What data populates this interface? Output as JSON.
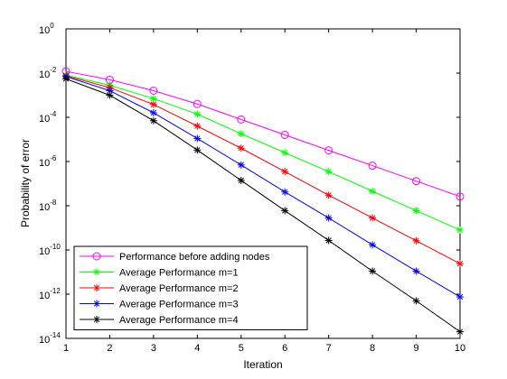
{
  "chart_data": {
    "type": "line",
    "xlabel": "Iteration",
    "ylabel": "Probability of error",
    "xlim": [
      1,
      10
    ],
    "ylim": [
      1e-14,
      1
    ],
    "yscale": "log",
    "x_ticks": [
      "1",
      "2",
      "3",
      "4",
      "5",
      "6",
      "7",
      "8",
      "9",
      "10"
    ],
    "y_ticks": [
      {
        "base": "10",
        "exp": "0"
      },
      {
        "base": "10",
        "exp": "-2"
      },
      {
        "base": "10",
        "exp": "-4"
      },
      {
        "base": "10",
        "exp": "-6"
      },
      {
        "base": "10",
        "exp": "-8"
      },
      {
        "base": "10",
        "exp": "-10"
      },
      {
        "base": "10",
        "exp": "-12"
      },
      {
        "base": "10",
        "exp": "-14"
      }
    ],
    "grid": false,
    "legend_position": "bottom-left",
    "x": [
      1,
      2,
      3,
      4,
      5,
      6,
      7,
      8,
      9,
      10
    ],
    "series": [
      {
        "name": "Performance before adding nodes",
        "color": "#ff00ff",
        "marker": "circle",
        "values": [
          0.012,
          0.005,
          0.0016,
          0.0004,
          8e-05,
          1.6e-05,
          3.2e-06,
          6.5e-07,
          1.3e-07,
          2.6e-08
        ]
      },
      {
        "name": "Average Performance m=1",
        "color": "#00ff00",
        "marker": "star",
        "values": [
          0.008,
          0.0028,
          0.0007,
          0.00014,
          1.8e-05,
          2.5e-06,
          3.5e-07,
          4.5e-08,
          6e-09,
          8e-10
        ]
      },
      {
        "name": "Average Performance m=2",
        "color": "#ff0000",
        "marker": "star",
        "values": [
          0.0075,
          0.0022,
          0.00038,
          4e-05,
          4e-06,
          3.5e-07,
          3e-08,
          2.8e-09,
          2.6e-10,
          2.4e-11
        ]
      },
      {
        "name": "Average Performance m=3",
        "color": "#0000ff",
        "marker": "star",
        "values": [
          0.007,
          0.0016,
          0.00016,
          1.1e-05,
          7e-07,
          4.2e-08,
          2.8e-09,
          1.7e-10,
          1.1e-11,
          7.5e-13
        ]
      },
      {
        "name": "Average Performance m=4",
        "color": "#000000",
        "marker": "star",
        "values": [
          0.0055,
          0.001,
          7e-05,
          3.3e-06,
          1.4e-07,
          6e-09,
          2.7e-10,
          1.1e-11,
          5e-13,
          2e-14
        ]
      }
    ]
  }
}
